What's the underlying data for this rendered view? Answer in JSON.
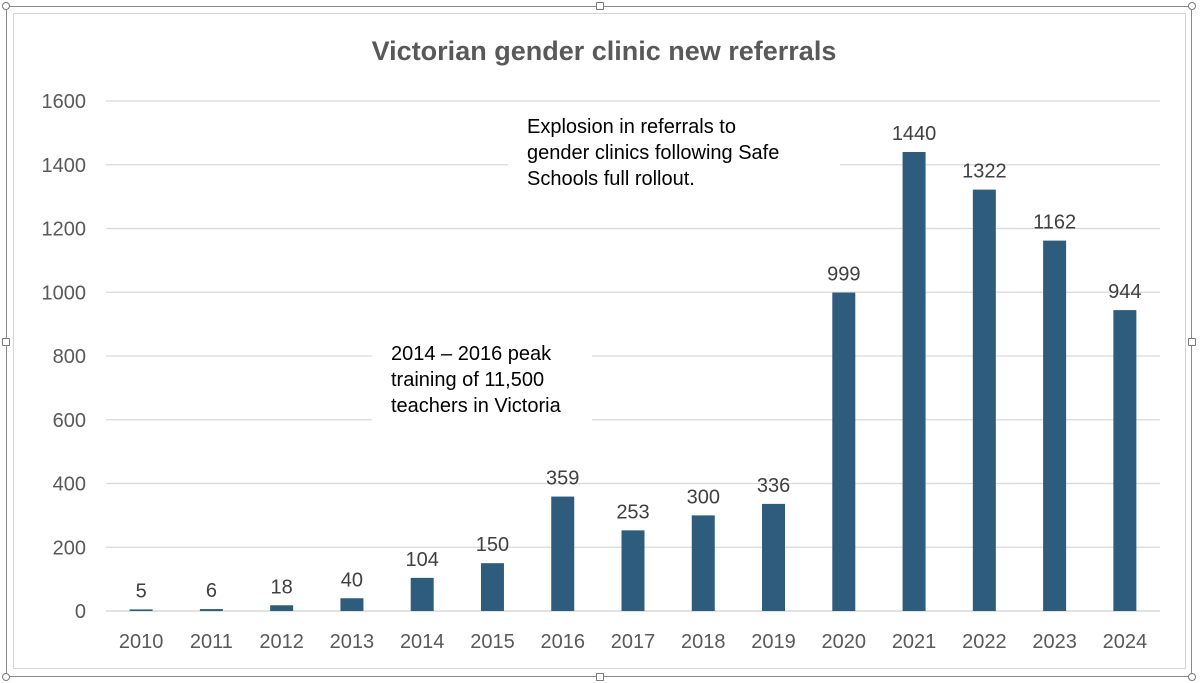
{
  "chart_data": {
    "type": "bar",
    "title": "Victorian gender clinic new referrals",
    "xlabel": "",
    "ylabel": "",
    "categories": [
      "2010",
      "2011",
      "2012",
      "2013",
      "2014",
      "2015",
      "2016",
      "2017",
      "2018",
      "2019",
      "2020",
      "2021",
      "2022",
      "2023",
      "2024"
    ],
    "values": [
      5,
      6,
      18,
      40,
      104,
      150,
      359,
      253,
      300,
      336,
      999,
      1440,
      1322,
      1162,
      944
    ],
    "data_labels": [
      "5",
      "6",
      "18",
      "40",
      "104",
      "150",
      "359",
      "253",
      "300",
      "336",
      "999",
      "1440",
      "1322",
      "1162",
      "944"
    ],
    "ylim": [
      0,
      1600
    ],
    "yticks": [
      "0",
      "200",
      "400",
      "600",
      "800",
      "1000",
      "1200",
      "1400",
      "1600"
    ],
    "grid": true,
    "legend": "none",
    "bar_color": "#2E5C7D",
    "annotations": [
      {
        "lines": [
          "Explosion in referrals to",
          "gender clinics following Safe",
          "Schools full rollout."
        ]
      },
      {
        "lines": [
          "2014 – 2016 peak",
          "training of 11,500",
          "teachers in Victoria"
        ]
      }
    ]
  }
}
